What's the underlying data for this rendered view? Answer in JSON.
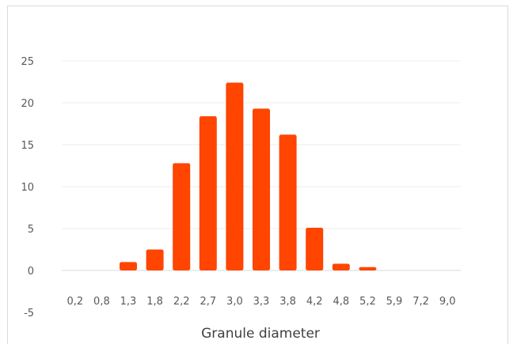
{
  "chart_data": {
    "type": "bar",
    "title": "",
    "xlabel": "Granule diameter",
    "ylabel": "",
    "categories": [
      "0,2",
      "0,8",
      "1,3",
      "1,8",
      "2,2",
      "2,7",
      "3,0",
      "3,3",
      "3,8",
      "4,2",
      "4,8",
      "5,2",
      "5,9",
      "7,2",
      "9,0"
    ],
    "values": [
      0,
      0,
      1,
      2.5,
      12.8,
      18.4,
      22.4,
      19.3,
      16.2,
      5.1,
      0.8,
      0.4,
      0,
      0,
      0
    ],
    "ylim": [
      -5,
      25
    ],
    "yticks": [
      "-5",
      "0",
      "5",
      "10",
      "15",
      "20",
      "25"
    ],
    "grid": true,
    "legend": "none",
    "bar_color": "#FF4500"
  }
}
